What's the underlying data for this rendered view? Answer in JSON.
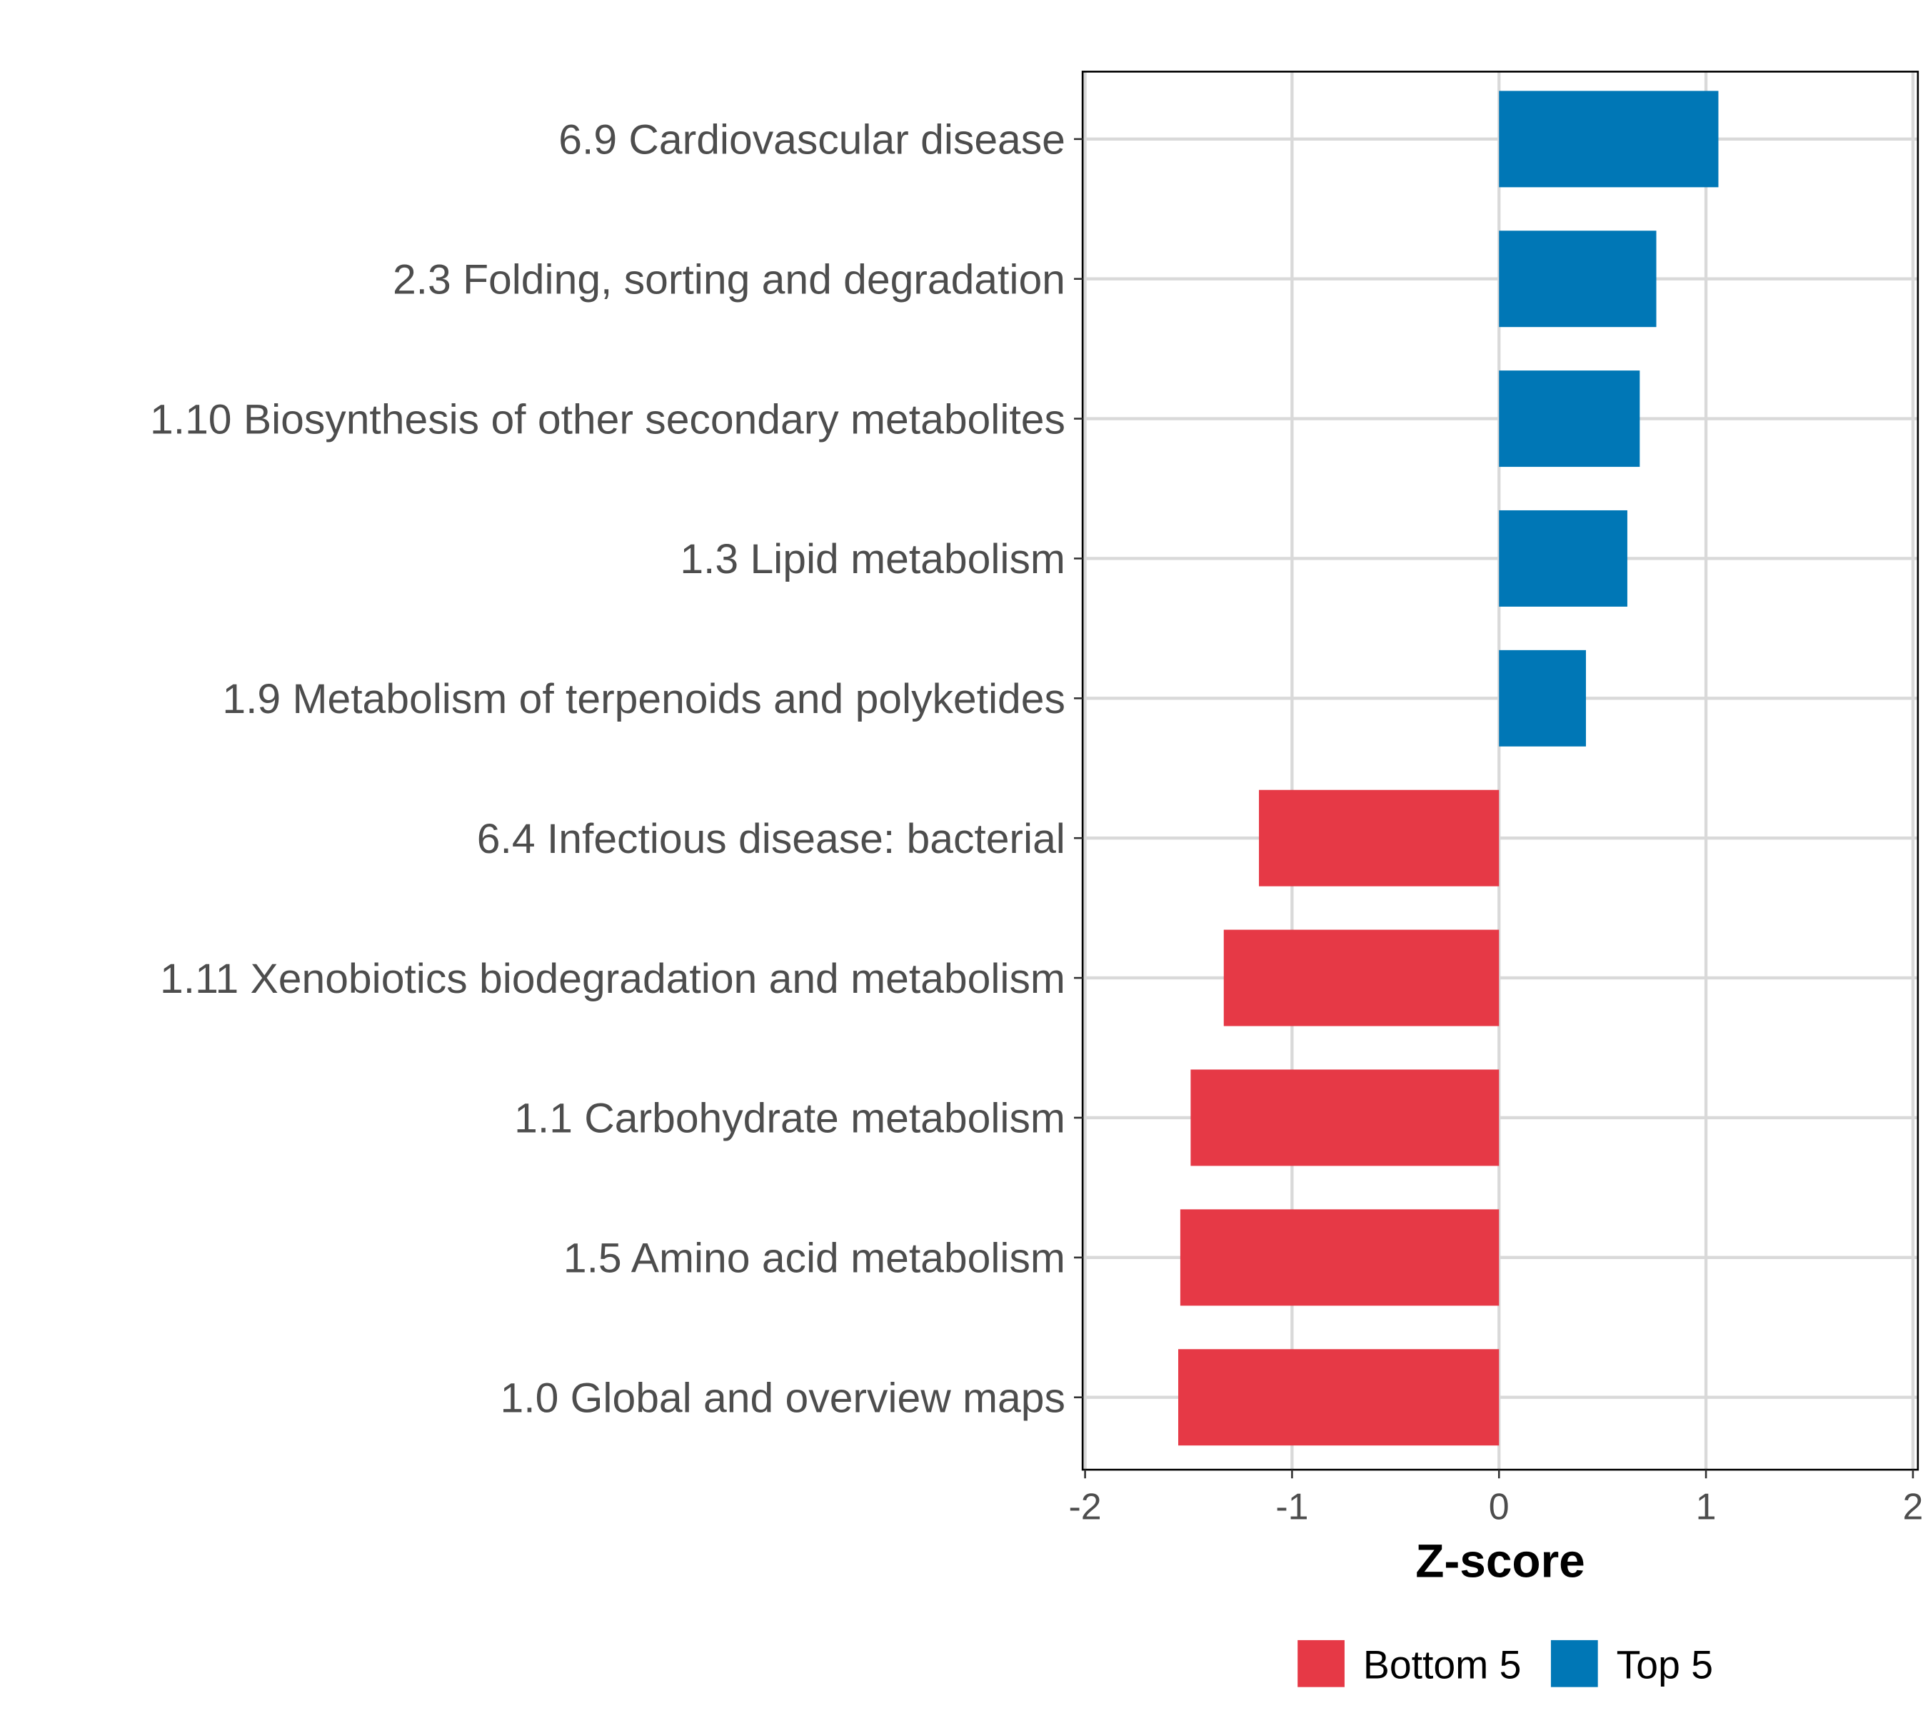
{
  "chart_data": {
    "type": "bar",
    "orientation": "horizontal",
    "title": "",
    "xlabel": "Z-score",
    "ylabel": "",
    "xlim": [
      -2,
      2
    ],
    "xticks": [
      "-2",
      "-1",
      "0",
      "1",
      "2"
    ],
    "xtick_values": [
      -2,
      -1,
      0,
      1,
      2
    ],
    "grid": true,
    "legend_position": "bottom",
    "categories": [
      "6.9 Cardiovascular disease",
      "2.3 Folding, sorting and degradation",
      "1.10 Biosynthesis of other secondary metabolites",
      "1.3 Lipid metabolism",
      "1.9 Metabolism of terpenoids and polyketides",
      "6.4 Infectious disease: bacterial",
      "1.11 Xenobiotics biodegradation and metabolism",
      "1.1 Carbohydrate metabolism",
      "1.5 Amino acid metabolism",
      "1.0 Global and overview maps"
    ],
    "values": [
      1.06,
      0.76,
      0.68,
      0.62,
      0.42,
      -1.16,
      -1.33,
      -1.49,
      -1.54,
      -1.55
    ],
    "groups": [
      "Top 5",
      "Top 5",
      "Top 5",
      "Top 5",
      "Top 5",
      "Bottom 5",
      "Bottom 5",
      "Bottom 5",
      "Bottom 5",
      "Bottom 5"
    ],
    "legend": [
      {
        "label": "Bottom 5",
        "color": "#e63946"
      },
      {
        "label": "Top 5",
        "color": "#0077b6"
      }
    ]
  }
}
